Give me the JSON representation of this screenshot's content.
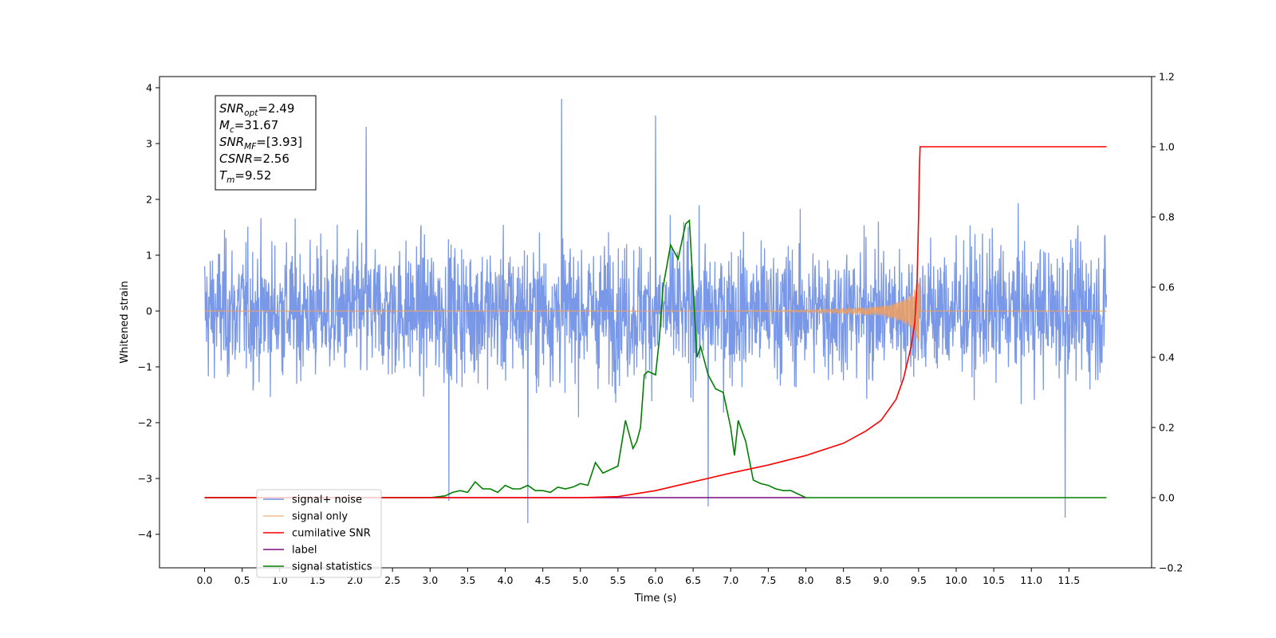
{
  "chart_data": {
    "type": "line",
    "xlabel": "Time (s)",
    "ylabel": "Whitened strain",
    "xlim": [
      -0.6,
      12.6
    ],
    "ylim": [
      -4.6,
      4.2
    ],
    "y2lim": [
      -0.2,
      1.2
    ],
    "x_ticks": [
      0.0,
      0.5,
      1.0,
      1.5,
      2.0,
      2.5,
      3.0,
      3.5,
      4.0,
      4.5,
      5.0,
      5.5,
      6.0,
      6.5,
      7.0,
      7.5,
      8.0,
      8.5,
      9.0,
      9.5,
      10.0,
      10.5,
      11.0,
      11.5
    ],
    "x_tick_labels": [
      "0.0",
      "0.5",
      "1.0",
      "1.5",
      "2.0",
      "2.5",
      "3.0",
      "3.5",
      "4.0",
      "4.5",
      "5.0",
      "5.5",
      "6.0",
      "6.5",
      "7.0",
      "7.5",
      "8.0",
      "8.5",
      "9.0",
      "9.5",
      "10.0",
      "10.5",
      "11.0",
      "11.5"
    ],
    "y_ticks": [
      -4,
      -3,
      -2,
      -1,
      0,
      1,
      2,
      3,
      4
    ],
    "y_tick_labels": [
      "−4",
      "−3",
      "−2",
      "−1",
      "0",
      "1",
      "2",
      "3",
      "4"
    ],
    "y2_ticks": [
      -0.2,
      0.0,
      0.2,
      0.4,
      0.6,
      0.8,
      1.0,
      1.2
    ],
    "y2_tick_labels": [
      "−0.2",
      "0.0",
      "0.2",
      "0.4",
      "0.6",
      "0.8",
      "1.0",
      "1.2"
    ],
    "grid": false,
    "legend_position": "lower-left",
    "annotation": [
      {
        "base": "SNR",
        "sub": "opt",
        "value": "=2.49"
      },
      {
        "base": "M",
        "sub": "c",
        "value": "=31.67"
      },
      {
        "base": "SNR",
        "sub": "MF",
        "value": "=[3.93]"
      },
      {
        "base": "CSNR",
        "sub": "",
        "value": "=2.56"
      },
      {
        "base": "T",
        "sub": "m",
        "value": "=9.52"
      }
    ],
    "series": [
      {
        "name": "signal+ noise",
        "axis": "left",
        "color": "#6f8fe6",
        "x_range": [
          0.0,
          12.0
        ],
        "envelope_typical": [
          -1.6,
          1.6
        ],
        "notable_extremes": [
          [
            4.75,
            3.8
          ],
          [
            6.0,
            3.5
          ],
          [
            2.15,
            3.3
          ],
          [
            4.3,
            -3.8
          ],
          [
            11.45,
            -3.7
          ],
          [
            6.7,
            -3.5
          ],
          [
            3.25,
            -3.4
          ]
        ]
      },
      {
        "name": "signal only",
        "axis": "left",
        "color": "#f0a060",
        "x": [
          0.0,
          7.0,
          8.0,
          8.5,
          9.0,
          9.2,
          9.35,
          9.45,
          9.5,
          9.52,
          12.0
        ],
        "amplitude": [
          0.0,
          0.005,
          0.02,
          0.04,
          0.08,
          0.15,
          0.25,
          0.4,
          0.55,
          0.6,
          0.0
        ]
      },
      {
        "name": "cumilative SNR",
        "axis": "right",
        "color": "#ff0000",
        "x": [
          0.0,
          5.0,
          5.5,
          6.0,
          6.5,
          7.0,
          7.5,
          8.0,
          8.5,
          8.8,
          9.0,
          9.2,
          9.3,
          9.4,
          9.45,
          9.48,
          9.5,
          9.51,
          9.52,
          12.0
        ],
        "values": [
          0.0,
          0.0,
          0.003,
          0.02,
          0.045,
          0.07,
          0.093,
          0.12,
          0.155,
          0.19,
          0.22,
          0.28,
          0.34,
          0.43,
          0.5,
          0.62,
          0.8,
          0.93,
          1.0,
          1.0
        ]
      },
      {
        "name": "label",
        "axis": "right",
        "color": "#7b0c7b",
        "x": [
          0.0,
          8.0
        ],
        "values": [
          0.0,
          0.0
        ]
      },
      {
        "name": "signal statistics",
        "axis": "right",
        "color": "#008000",
        "x": [
          0.0,
          3.0,
          3.2,
          3.3,
          3.4,
          3.5,
          3.6,
          3.7,
          3.8,
          3.9,
          4.0,
          4.1,
          4.2,
          4.3,
          4.4,
          4.5,
          4.6,
          4.7,
          4.8,
          4.9,
          5.0,
          5.1,
          5.2,
          5.3,
          5.4,
          5.5,
          5.6,
          5.7,
          5.75,
          5.8,
          5.85,
          5.9,
          6.0,
          6.05,
          6.1,
          6.2,
          6.3,
          6.4,
          6.45,
          6.5,
          6.55,
          6.6,
          6.7,
          6.8,
          6.9,
          7.0,
          7.05,
          7.1,
          7.2,
          7.3,
          7.4,
          7.5,
          7.6,
          7.7,
          7.8,
          7.9,
          8.0,
          8.2,
          12.0
        ],
        "values": [
          0.0,
          0.0,
          0.005,
          0.015,
          0.02,
          0.015,
          0.045,
          0.025,
          0.025,
          0.015,
          0.035,
          0.025,
          0.025,
          0.035,
          0.02,
          0.02,
          0.015,
          0.03,
          0.025,
          0.03,
          0.04,
          0.035,
          0.1,
          0.07,
          0.08,
          0.09,
          0.22,
          0.14,
          0.16,
          0.2,
          0.35,
          0.36,
          0.35,
          0.45,
          0.6,
          0.72,
          0.68,
          0.78,
          0.79,
          0.6,
          0.4,
          0.43,
          0.35,
          0.31,
          0.3,
          0.2,
          0.12,
          0.22,
          0.16,
          0.05,
          0.04,
          0.035,
          0.025,
          0.02,
          0.02,
          0.01,
          0.0,
          0.0,
          0.0
        ]
      }
    ]
  }
}
